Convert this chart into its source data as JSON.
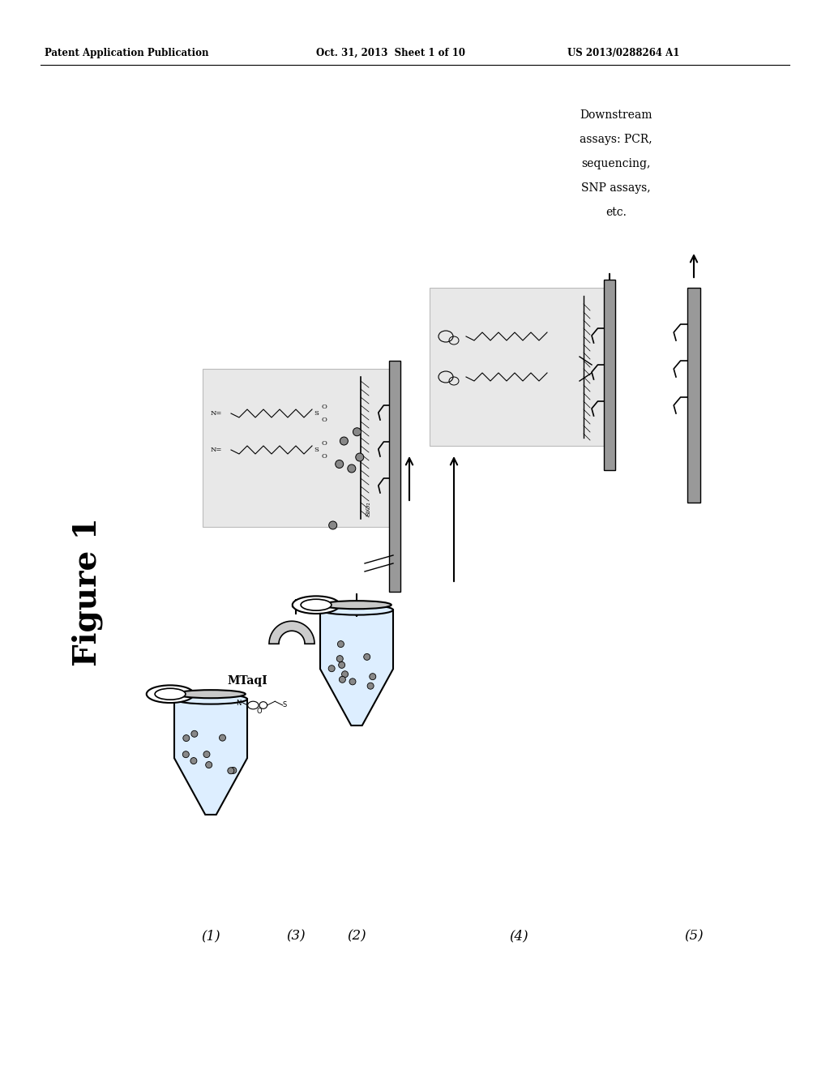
{
  "bg_color": "#ffffff",
  "header_left": "Patent Application Publication",
  "header_mid": "Oct. 31, 2013  Sheet 1 of 10",
  "header_right": "US 2013/0288264 A1",
  "figure_label": "Figure 1",
  "downstream_lines": [
    "Downstream",
    "assays: PCR,",
    "sequencing,",
    "SNP assays,",
    "etc."
  ],
  "mtaqi_label": "MTaqI",
  "step_labels": [
    "(1)",
    "(2)",
    "(3)",
    "(4)",
    "(5)"
  ],
  "gray_box_color": "#e8e8e8",
  "surface_color": "#aaaaaa",
  "bead_color": "#888888",
  "tube_fill": "#e0e8f0",
  "magnet_color": "#cccccc"
}
